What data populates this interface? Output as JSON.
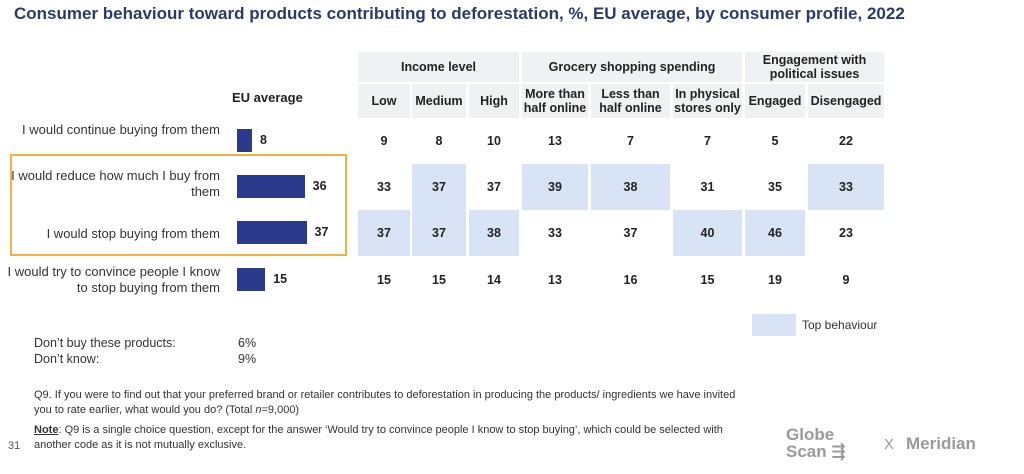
{
  "title": "Consumer behaviour toward products contributing to deforestation, %, EU average, by consumer profile, 2022",
  "chart_data": {
    "type": "table",
    "eu_average_label": "EU average",
    "groups": [
      {
        "label": "Income level",
        "span": 3
      },
      {
        "label": "Grocery shopping spending",
        "span": 3
      },
      {
        "label": "Engagement with political issues",
        "span": 2
      }
    ],
    "columns": [
      "Low",
      "Medium",
      "High",
      "More than half online",
      "Less than half online",
      "In physical stores only",
      "Engaged",
      "Disengaged"
    ],
    "rows": [
      {
        "label": "I would continue buying from them",
        "eu": 8,
        "values": [
          9,
          8,
          10,
          13,
          7,
          7,
          5,
          22
        ],
        "top": [
          false,
          false,
          false,
          false,
          false,
          false,
          false,
          false
        ]
      },
      {
        "label": "I would reduce how much I buy from them",
        "eu": 36,
        "values": [
          33,
          37,
          37,
          39,
          38,
          31,
          35,
          33
        ],
        "top": [
          false,
          true,
          false,
          true,
          true,
          false,
          false,
          true
        ]
      },
      {
        "label": "I would stop buying from them",
        "eu": 37,
        "values": [
          37,
          37,
          38,
          33,
          37,
          40,
          46,
          23
        ],
        "top": [
          true,
          true,
          true,
          false,
          false,
          true,
          true,
          false
        ]
      },
      {
        "label": "I would try to convince people I know to stop buying from them",
        "eu": 15,
        "values": [
          15,
          15,
          14,
          13,
          16,
          15,
          19,
          9
        ],
        "top": [
          false,
          false,
          false,
          false,
          false,
          false,
          false,
          false
        ]
      }
    ],
    "legend": "Top behaviour",
    "colors": {
      "bar": "#2b3a8c",
      "top_behaviour": "#d8e3f5",
      "highlight_border": "#f0b43c",
      "title": "#2b3a67"
    }
  },
  "notes": [
    {
      "label": "Don’t buy these products:",
      "value": "6%"
    },
    {
      "label": "Don’t know:",
      "value": "9%"
    }
  ],
  "footnote": {
    "question_start": "Q9. If you were to find out that your preferred brand or retailer contributes to deforestation in producing the products/ ingredients we have invited you to rate earlier, what would you do? (Total ",
    "question_n": "n",
    "question_end": "=9,000)",
    "note_label": "Note",
    "note_text": ": Q9 is a single choice question, except for the answer ‘Would try to convince people I know to stop buying’, which could be selected with another code as it is not mutually exclusive."
  },
  "page_number": "31",
  "logos": {
    "globescan_line1": "Globe",
    "globescan_line2": "Scan",
    "separator": "X",
    "meridian": "Meridian"
  }
}
